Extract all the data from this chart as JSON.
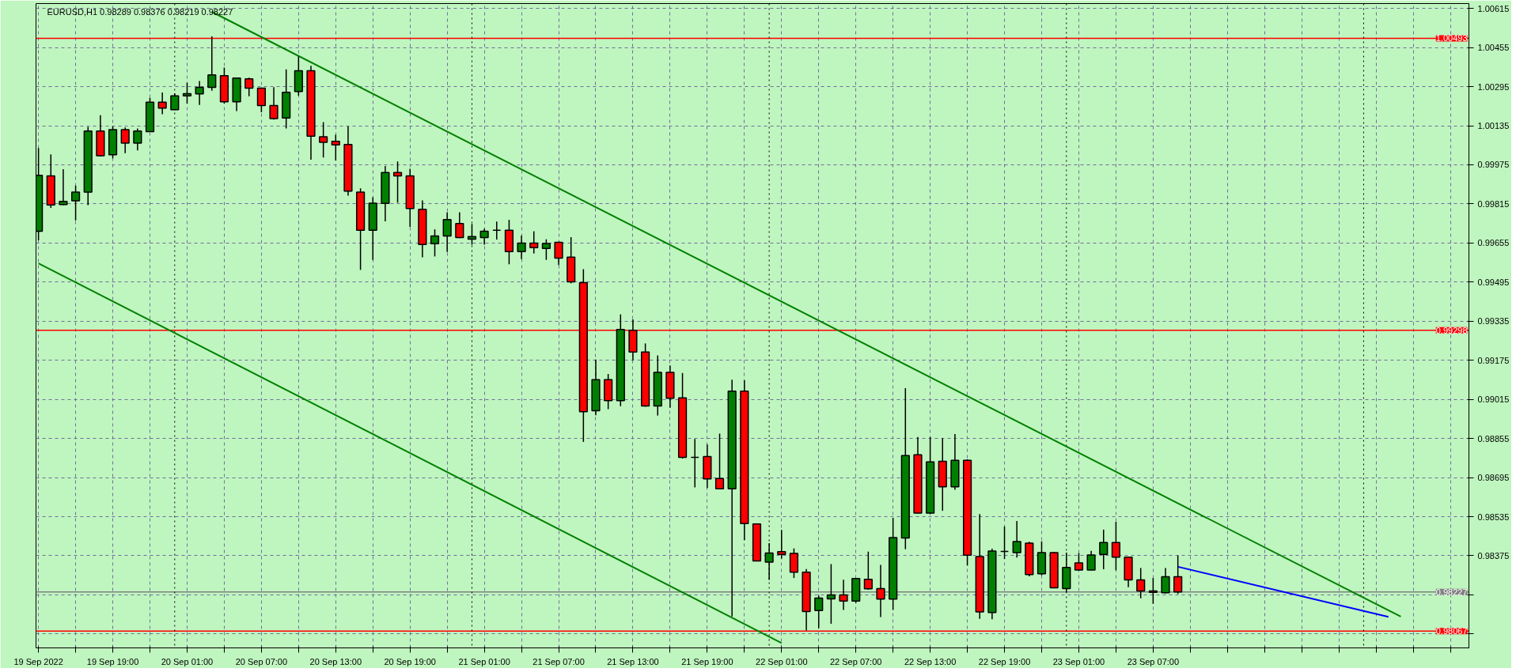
{
  "chart_data": {
    "type": "candlestick",
    "title": "EURUSD,H1  0.98289 0.98376 0.98219 0.98227",
    "x": [
      "2022-09-19T13:00",
      "2022-09-19T14:00",
      "2022-09-19T15:00",
      "2022-09-19T16:00",
      "2022-09-19T17:00",
      "2022-09-19T18:00",
      "2022-09-19T19:00",
      "2022-09-19T20:00",
      "2022-09-19T21:00",
      "2022-09-19T22:00",
      "2022-09-19T23:00",
      "2022-09-20T00:00",
      "2022-09-20T01:00",
      "2022-09-20T02:00",
      "2022-09-20T03:00",
      "2022-09-20T04:00",
      "2022-09-20T05:00",
      "2022-09-20T06:00",
      "2022-09-20T07:00",
      "2022-09-20T08:00",
      "2022-09-20T09:00",
      "2022-09-20T10:00",
      "2022-09-20T11:00",
      "2022-09-20T12:00",
      "2022-09-20T13:00",
      "2022-09-20T14:00",
      "2022-09-20T15:00",
      "2022-09-20T16:00",
      "2022-09-20T17:00",
      "2022-09-20T18:00",
      "2022-09-20T19:00",
      "2022-09-20T20:00",
      "2022-09-20T21:00",
      "2022-09-20T22:00",
      "2022-09-20T23:00",
      "2022-09-21T00:00",
      "2022-09-21T01:00",
      "2022-09-21T02:00",
      "2022-09-21T03:00",
      "2022-09-21T04:00",
      "2022-09-21T05:00",
      "2022-09-21T06:00",
      "2022-09-21T07:00",
      "2022-09-21T08:00",
      "2022-09-21T09:00",
      "2022-09-21T10:00",
      "2022-09-21T11:00",
      "2022-09-21T12:00",
      "2022-09-21T13:00",
      "2022-09-21T14:00",
      "2022-09-21T15:00",
      "2022-09-21T16:00",
      "2022-09-21T17:00",
      "2022-09-21T18:00",
      "2022-09-21T19:00",
      "2022-09-21T20:00",
      "2022-09-21T21:00",
      "2022-09-21T22:00",
      "2022-09-21T23:00",
      "2022-09-22T00:00",
      "2022-09-22T01:00",
      "2022-09-22T02:00",
      "2022-09-22T03:00",
      "2022-09-22T04:00",
      "2022-09-22T05:00",
      "2022-09-22T06:00",
      "2022-09-22T07:00",
      "2022-09-22T08:00",
      "2022-09-22T09:00",
      "2022-09-22T10:00",
      "2022-09-22T11:00",
      "2022-09-22T12:00",
      "2022-09-22T13:00",
      "2022-09-22T14:00",
      "2022-09-22T15:00",
      "2022-09-22T16:00",
      "2022-09-22T17:00",
      "2022-09-22T18:00",
      "2022-09-22T19:00",
      "2022-09-22T20:00",
      "2022-09-22T21:00",
      "2022-09-22T22:00",
      "2022-09-22T23:00",
      "2022-09-23T00:00",
      "2022-09-23T01:00",
      "2022-09-23T02:00",
      "2022-09-23T03:00",
      "2022-09-23T04:00",
      "2022-09-23T05:00",
      "2022-09-23T06:00",
      "2022-09-23T07:00",
      "2022-09-23T08:00",
      "2022-09-23T09:00"
    ],
    "ohlc": [
      [
        0.99703,
        1.00044,
        0.99666,
        0.99932
      ],
      [
        0.9993,
        1.00018,
        0.99799,
        0.99811
      ],
      [
        0.99812,
        0.99957,
        0.9981,
        0.99825
      ],
      [
        0.99828,
        0.9989,
        0.99748,
        0.99863
      ],
      [
        0.99863,
        1.0013,
        0.9981,
        1.00113
      ],
      [
        1.00113,
        1.00178,
        1.00009,
        1.00012
      ],
      [
        1.00016,
        1.00133,
        1.00002,
        1.00119
      ],
      [
        1.00119,
        1.00128,
        1.00023,
        1.00064
      ],
      [
        1.00064,
        1.00124,
        1.00034,
        1.00113
      ],
      [
        1.00111,
        1.00249,
        1.00109,
        1.00231
      ],
      [
        1.00231,
        1.00271,
        1.00182,
        1.00207
      ],
      [
        1.00201,
        1.00268,
        1.00199,
        1.00257
      ],
      [
        1.00257,
        1.00311,
        1.00226,
        1.00266
      ],
      [
        1.00265,
        1.00318,
        1.0022,
        1.00292
      ],
      [
        1.00292,
        1.00501,
        1.00278,
        1.00343
      ],
      [
        1.0034,
        1.00373,
        1.00226,
        1.00233
      ],
      [
        1.00233,
        1.00332,
        1.00195,
        1.0033
      ],
      [
        1.00327,
        1.00332,
        1.00256,
        1.00289
      ],
      [
        1.00289,
        1.00291,
        1.0019,
        1.00218
      ],
      [
        1.00218,
        1.00293,
        1.0016,
        1.00164
      ],
      [
        1.00167,
        1.00366,
        1.00124,
        1.00272
      ],
      [
        1.00275,
        1.00418,
        1.00258,
        1.0036
      ],
      [
        1.0036,
        1.0038,
        0.99996,
        1.00092
      ],
      [
        1.0009,
        1.0015,
        1.00005,
        1.00067
      ],
      [
        1.00071,
        1.00098,
        0.99993,
        1.00057
      ],
      [
        1.00058,
        1.00133,
        0.99849,
        0.99867
      ],
      [
        0.99863,
        0.99879,
        0.99545,
        0.99707
      ],
      [
        0.99707,
        0.99842,
        0.99586,
        0.99818
      ],
      [
        0.99817,
        0.9997,
        0.99744,
        0.99943
      ],
      [
        0.99943,
        0.99989,
        0.9982,
        0.9993
      ],
      [
        0.9993,
        0.99959,
        0.99721,
        0.99796
      ],
      [
        0.99793,
        0.99829,
        0.99596,
        0.99649
      ],
      [
        0.99652,
        0.99711,
        0.996,
        0.99684
      ],
      [
        0.99684,
        0.99781,
        0.99618,
        0.99751
      ],
      [
        0.99735,
        0.99781,
        0.99675,
        0.99677
      ],
      [
        0.99671,
        0.99733,
        0.99648,
        0.99681
      ],
      [
        0.99677,
        0.99714,
        0.99648,
        0.99703
      ],
      [
        0.99707,
        0.99743,
        0.99669,
        0.99707
      ],
      [
        0.99707,
        0.9975,
        0.99568,
        0.9962
      ],
      [
        0.9962,
        0.99685,
        0.99589,
        0.99655
      ],
      [
        0.99655,
        0.99703,
        0.99612,
        0.99636
      ],
      [
        0.99633,
        0.9967,
        0.99586,
        0.99653
      ],
      [
        0.99658,
        0.9966,
        0.99565,
        0.99593
      ],
      [
        0.99597,
        0.99679,
        0.9949,
        0.99496
      ],
      [
        0.99493,
        0.99548,
        0.98841,
        0.98965
      ],
      [
        0.98969,
        0.99178,
        0.9895,
        0.99096
      ],
      [
        0.99096,
        0.99119,
        0.98975,
        0.9901
      ],
      [
        0.9901,
        0.99363,
        0.98987,
        0.99301
      ],
      [
        0.99298,
        0.99342,
        0.99175,
        0.99209
      ],
      [
        0.99209,
        0.99244,
        0.98985,
        0.98988
      ],
      [
        0.98988,
        0.99195,
        0.98949,
        0.99126
      ],
      [
        0.99126,
        0.99154,
        0.98981,
        0.9902
      ],
      [
        0.99021,
        0.99123,
        0.98773,
        0.98778
      ],
      [
        0.98778,
        0.98853,
        0.98655,
        0.98778
      ],
      [
        0.98781,
        0.9883,
        0.98652,
        0.9869
      ],
      [
        0.98691,
        0.98875,
        0.98647,
        0.98649
      ],
      [
        0.98649,
        0.99096,
        0.98127,
        0.99049
      ],
      [
        0.99049,
        0.99093,
        0.98439,
        0.98507
      ],
      [
        0.98505,
        0.98507,
        0.98352,
        0.98354
      ],
      [
        0.98349,
        0.98427,
        0.98276,
        0.98386
      ],
      [
        0.98392,
        0.98481,
        0.98364,
        0.98381
      ],
      [
        0.98385,
        0.98405,
        0.98284,
        0.98308
      ],
      [
        0.98308,
        0.98321,
        0.98069,
        0.98147
      ],
      [
        0.98151,
        0.98212,
        0.98079,
        0.98202
      ],
      [
        0.98199,
        0.98341,
        0.98097,
        0.98215
      ],
      [
        0.98215,
        0.98277,
        0.98153,
        0.9819
      ],
      [
        0.9819,
        0.98284,
        0.98182,
        0.98282
      ],
      [
        0.98279,
        0.98392,
        0.98236,
        0.9824
      ],
      [
        0.98241,
        0.98338,
        0.98124,
        0.98198
      ],
      [
        0.98198,
        0.9853,
        0.98153,
        0.98449
      ],
      [
        0.98448,
        0.99061,
        0.98402,
        0.98785
      ],
      [
        0.98788,
        0.98861,
        0.98548,
        0.9855
      ],
      [
        0.9855,
        0.98861,
        0.98546,
        0.98759
      ],
      [
        0.98762,
        0.98856,
        0.98559,
        0.98657
      ],
      [
        0.98657,
        0.98873,
        0.98645,
        0.98766
      ],
      [
        0.98766,
        0.9877,
        0.98335,
        0.98377
      ],
      [
        0.98372,
        0.98546,
        0.98117,
        0.98145
      ],
      [
        0.98143,
        0.98404,
        0.98115,
        0.98394
      ],
      [
        0.98393,
        0.98495,
        0.98362,
        0.98393
      ],
      [
        0.98388,
        0.98517,
        0.98368,
        0.98433
      ],
      [
        0.98427,
        0.98432,
        0.98291,
        0.98298
      ],
      [
        0.98301,
        0.98434,
        0.98295,
        0.98388
      ],
      [
        0.98388,
        0.98391,
        0.98242,
        0.98244
      ],
      [
        0.98241,
        0.98388,
        0.98226,
        0.98327
      ],
      [
        0.98346,
        0.98386,
        0.98315,
        0.98317
      ],
      [
        0.98317,
        0.98395,
        0.98315,
        0.98378
      ],
      [
        0.98381,
        0.98482,
        0.9832,
        0.98429
      ],
      [
        0.98429,
        0.98514,
        0.98316,
        0.98369
      ],
      [
        0.98369,
        0.98371,
        0.98246,
        0.98276
      ],
      [
        0.98276,
        0.98325,
        0.98201,
        0.98231
      ],
      [
        0.98231,
        0.98284,
        0.98178,
        0.98225
      ],
      [
        0.98224,
        0.98325,
        0.98221,
        0.98289
      ],
      [
        0.98289,
        0.98376,
        0.98219,
        0.98227
      ]
    ],
    "series": [
      {
        "type": "line",
        "color": "#008000",
        "x": [
          "2022-09-20T03:00",
          "2022-09-24T03:00"
        ],
        "values": [
          1.00601,
          0.98126
        ]
      },
      {
        "type": "line",
        "color": "#008000",
        "x": [
          "2022-09-19T13:00",
          "2022-09-22T01:00"
        ],
        "values": [
          0.99572,
          0.98018
        ]
      },
      {
        "type": "line",
        "color": "#0000ff",
        "x": [
          "2022-09-23T09:00",
          "2022-09-24T02:00"
        ],
        "values": [
          0.9833,
          0.98125
        ]
      }
    ],
    "xlim": [
      "2022-09-19T12:48",
      "2022-09-24T08:30"
    ],
    "ylim": [
      0.97998,
      1.00635
    ],
    "xticks": [
      {
        "value": "2022-09-19T13:00",
        "label": "19 Sep 2022"
      },
      {
        "value": "2022-09-19T16:00",
        "label": null
      },
      {
        "value": "2022-09-19T19:00",
        "label": "19 Sep 19:00"
      },
      {
        "value": "2022-09-19T22:00",
        "label": null
      },
      {
        "value": "2022-09-20T01:00",
        "label": "20 Sep 01:00"
      },
      {
        "value": "2022-09-20T04:00",
        "label": null
      },
      {
        "value": "2022-09-20T07:00",
        "label": "20 Sep 07:00"
      },
      {
        "value": "2022-09-20T10:00",
        "label": null
      },
      {
        "value": "2022-09-20T13:00",
        "label": "20 Sep 13:00"
      },
      {
        "value": "2022-09-20T16:00",
        "label": null
      },
      {
        "value": "2022-09-20T19:00",
        "label": "20 Sep 19:00"
      },
      {
        "value": "2022-09-20T22:00",
        "label": null
      },
      {
        "value": "2022-09-21T01:00",
        "label": "21 Sep 01:00"
      },
      {
        "value": "2022-09-21T04:00",
        "label": null
      },
      {
        "value": "2022-09-21T07:00",
        "label": "21 Sep 07:00"
      },
      {
        "value": "2022-09-21T10:00",
        "label": null
      },
      {
        "value": "2022-09-21T13:00",
        "label": "21 Sep 13:00"
      },
      {
        "value": "2022-09-21T16:00",
        "label": null
      },
      {
        "value": "2022-09-21T19:00",
        "label": "21 Sep 19:00"
      },
      {
        "value": "2022-09-21T22:00",
        "label": null
      },
      {
        "value": "2022-09-22T01:00",
        "label": "22 Sep 01:00"
      },
      {
        "value": "2022-09-22T04:00",
        "label": null
      },
      {
        "value": "2022-09-22T07:00",
        "label": "22 Sep 07:00"
      },
      {
        "value": "2022-09-22T10:00",
        "label": null
      },
      {
        "value": "2022-09-22T13:00",
        "label": "22 Sep 13:00"
      },
      {
        "value": "2022-09-22T16:00",
        "label": null
      },
      {
        "value": "2022-09-22T19:00",
        "label": "22 Sep 19:00"
      },
      {
        "value": "2022-09-22T22:00",
        "label": null
      },
      {
        "value": "2022-09-23T01:00",
        "label": "23 Sep 01:00"
      },
      {
        "value": "2022-09-23T04:00",
        "label": null
      },
      {
        "value": "2022-09-23T07:00",
        "label": "23 Sep 07:00"
      },
      {
        "value": "2022-09-23T10:00",
        "label": null
      },
      {
        "value": "2022-09-23T13:00",
        "label": null
      },
      {
        "value": "2022-09-23T16:00",
        "label": null
      },
      {
        "value": "2022-09-23T19:00",
        "label": null
      },
      {
        "value": "2022-09-23T22:00",
        "label": null
      },
      {
        "value": "2022-09-24T01:00",
        "label": null
      },
      {
        "value": "2022-09-24T04:00",
        "label": null
      },
      {
        "value": "2022-09-24T07:00",
        "label": null
      }
    ],
    "yticks": [
      1.00615,
      1.00455,
      1.00295,
      1.00135,
      0.99975,
      0.99815,
      0.99655,
      0.99495,
      0.99335,
      0.99175,
      0.99015,
      0.98855,
      0.98695,
      0.98535,
      0.98375,
      {
        "value": 0.98215,
        "label": null
      },
      {
        "value": 0.98055,
        "label": null
      }
    ],
    "ref_lines": [
      {
        "axis": "y",
        "value": 1.00493,
        "label": "1.00493",
        "color": "#ff0000",
        "line_style": "solid"
      },
      {
        "axis": "y",
        "value": 0.99298,
        "label": "0.99298",
        "color": "#ff0000",
        "line_style": "solid"
      },
      {
        "axis": "y",
        "value": 0.98067,
        "label": "0.98067",
        "color": "#ff0000",
        "line_style": "solid"
      },
      {
        "axis": "y",
        "value": 0.98227,
        "label": "0.98227",
        "color": "#808080",
        "line_style": "solid"
      },
      {
        "axis": "x",
        "value": "2022-09-20T00:00",
        "color": "#000000",
        "line_style": "dotted"
      },
      {
        "axis": "x",
        "value": "2022-09-21T00:00",
        "color": "#000000",
        "line_style": "dotted"
      },
      {
        "axis": "x",
        "value": "2022-09-22T00:00",
        "color": "#000000",
        "line_style": "dotted"
      },
      {
        "axis": "x",
        "value": "2022-09-23T00:00",
        "color": "#000000",
        "line_style": "dotted"
      },
      {
        "axis": "x",
        "value": "2022-09-24T00:00",
        "color": "#000000",
        "line_style": "dotted"
      }
    ],
    "grid": true
  }
}
